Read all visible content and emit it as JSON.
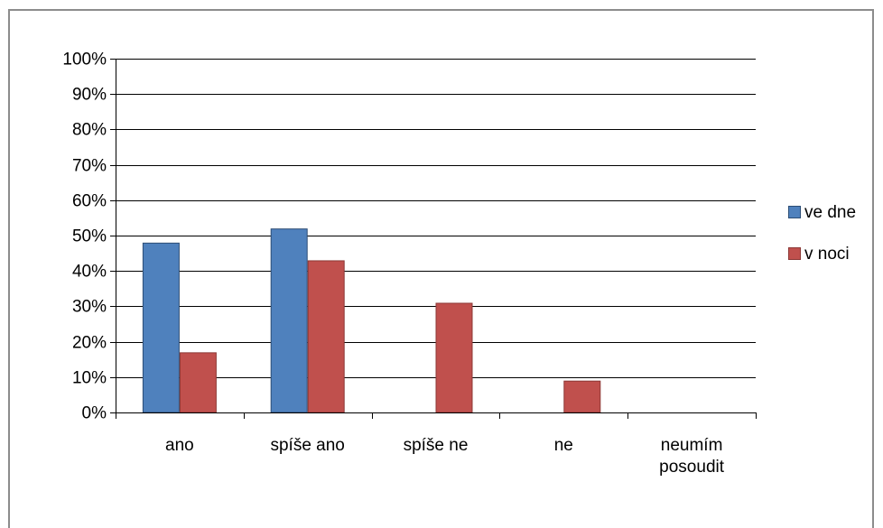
{
  "chart_data": {
    "type": "bar",
    "categories": [
      [
        "ano"
      ],
      [
        "spíše ano"
      ],
      [
        "spíše ne"
      ],
      [
        "ne"
      ],
      [
        "neumím",
        "posoudit"
      ]
    ],
    "series": [
      {
        "name": "ve dne",
        "values": [
          48,
          52,
          0,
          0,
          0
        ],
        "color": "#4f81bd",
        "stroke": "#2c4d75"
      },
      {
        "name": "v noci",
        "values": [
          17,
          43,
          31,
          9,
          0
        ],
        "color": "#c0504d",
        "stroke": "#8c3836"
      }
    ],
    "yticks": [
      "0%",
      "10%",
      "20%",
      "30%",
      "40%",
      "50%",
      "60%",
      "70%",
      "80%",
      "90%",
      "100%"
    ],
    "ylim": [
      0,
      100
    ],
    "grid": true,
    "legend_position": "right",
    "title": "",
    "xlabel": "",
    "ylabel": ""
  }
}
